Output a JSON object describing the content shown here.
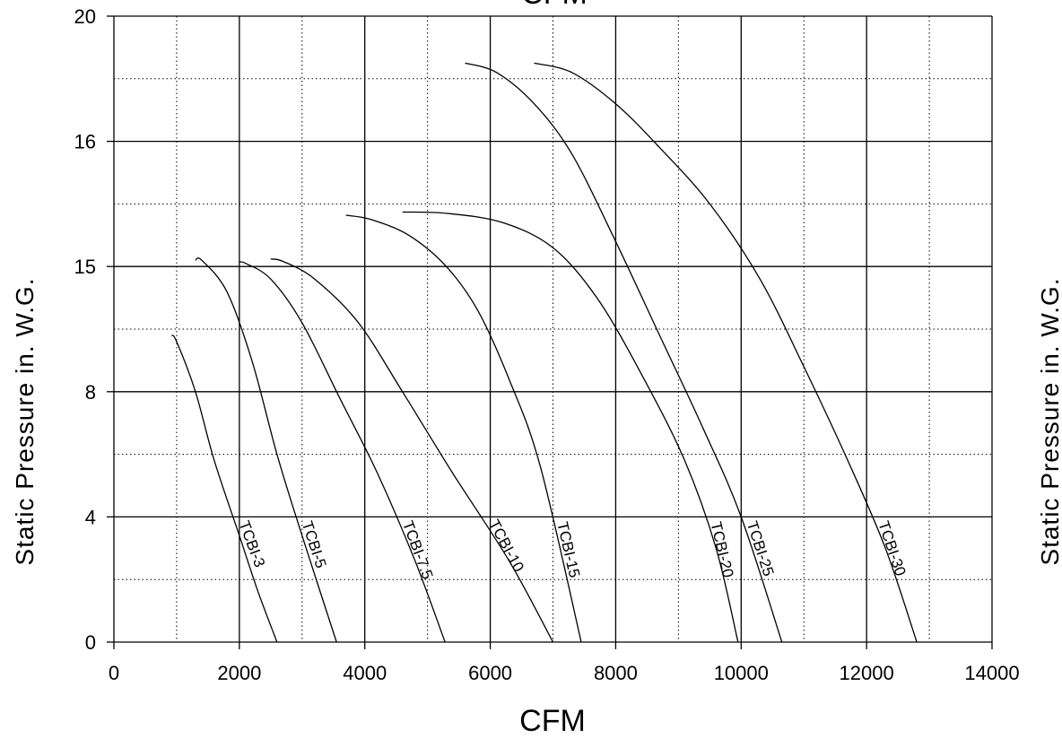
{
  "chart_data": {
    "type": "line",
    "top_title_fragment": "CFM",
    "xlabel": "CFM",
    "ylabel_left": "Static Pressure in. W.G.",
    "ylabel_right": "Static Pressure in. W.G.",
    "xlim": [
      0,
      14000
    ],
    "x_ticks": [
      0,
      2000,
      4000,
      6000,
      8000,
      10000,
      12000,
      14000
    ],
    "x_tick_labels": [
      "0",
      "2000",
      "4000",
      "6000",
      "8000",
      "10000",
      "12000",
      "14000"
    ],
    "x_minor_ticks": [
      1000,
      3000,
      5000,
      7000,
      9000,
      11000,
      13000
    ],
    "y_tick_labels": [
      "0",
      "4",
      "8",
      "15",
      "16",
      "20"
    ],
    "y_minor_gridlines": 5,
    "y_scale_note": "printed y tick labels are non-uniform; curve y values are expressed as fraction of plot height (0 = bottom, 1 = top)",
    "grid": true,
    "series": [
      {
        "name": "TCBI-3",
        "x": [
          920,
          1000,
          1300,
          1600,
          2000,
          2300,
          2600
        ],
        "y": [
          0.49,
          0.48,
          0.4,
          0.29,
          0.17,
          0.08,
          0.0
        ]
      },
      {
        "name": "TCBI-5",
        "x": [
          1300,
          1400,
          1800,
          2200,
          2600,
          3000,
          3550
        ],
        "y": [
          0.61,
          0.61,
          0.56,
          0.45,
          0.3,
          0.17,
          0.0
        ]
      },
      {
        "name": "TCBI-7.5",
        "x": [
          2000,
          2100,
          2500,
          3000,
          3600,
          4200,
          4800,
          5280
        ],
        "y": [
          0.607,
          0.605,
          0.58,
          0.51,
          0.39,
          0.27,
          0.13,
          0.0
        ]
      },
      {
        "name": "TCBI-10",
        "x": [
          2500,
          2700,
          3200,
          3900,
          4600,
          5400,
          6300,
          7000
        ],
        "y": [
          0.612,
          0.608,
          0.58,
          0.51,
          0.4,
          0.27,
          0.13,
          0.0
        ]
      },
      {
        "name": "TCBI-15",
        "x": [
          3700,
          4100,
          4700,
          5300,
          5800,
          6300,
          6800,
          7450
        ],
        "y": [
          0.682,
          0.675,
          0.65,
          0.6,
          0.53,
          0.42,
          0.28,
          0.0
        ]
      },
      {
        "name": "TCBI-20",
        "x": [
          4600,
          5300,
          6200,
          7000,
          7700,
          8400,
          9100,
          9600,
          9950
        ],
        "y": [
          0.687,
          0.685,
          0.67,
          0.63,
          0.55,
          0.43,
          0.29,
          0.15,
          0.0
        ]
      },
      {
        "name": "TCBI-25",
        "x": [
          5600,
          6100,
          6700,
          7300,
          8000,
          8700,
          9400,
          10000,
          10650
        ],
        "y": [
          0.925,
          0.91,
          0.86,
          0.78,
          0.64,
          0.49,
          0.34,
          0.2,
          0.0
        ]
      },
      {
        "name": "TCBI-30",
        "x": [
          6700,
          7300,
          8000,
          8700,
          9500,
          10300,
          11000,
          11700,
          12300,
          12800
        ],
        "y": [
          0.925,
          0.91,
          0.86,
          0.79,
          0.7,
          0.58,
          0.44,
          0.29,
          0.15,
          0.0
        ]
      }
    ]
  }
}
